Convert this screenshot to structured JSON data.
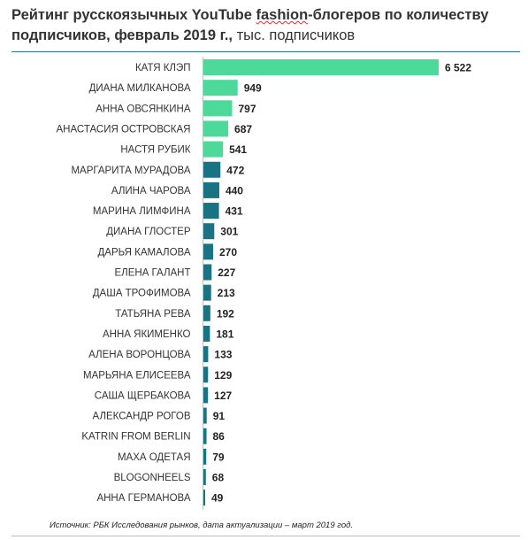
{
  "title": {
    "bold_part_1": "Рейтинг русскоязычных YouTube ",
    "underlined_word": "fashion",
    "bold_part_2": "-блогеров по количеству подписчиков, февраль 2019 г.,",
    "unit_part": " тыс. подписчиков"
  },
  "source": "Источник: РБК Исследования рынков, дата актуализации – март 2019 год.",
  "colors": {
    "top5": "#4dd99a",
    "rest": "#1a7383"
  },
  "chart_data": {
    "type": "bar",
    "orientation": "horizontal",
    "categories": [
      "КАТЯ КЛЭП",
      "ДИАНА МИЛКАНОВА",
      "АННА ОВСЯНКИНА",
      "АНАСТАСИЯ ОСТРОВСКАЯ",
      "НАСТЯ РУБИК",
      "МАРГАРИТА МУРАДОВА",
      "АЛИНА ЧАРОВА",
      "МАРИНА ЛИМФИНА",
      "ДИАНА ГЛОСТЕР",
      "ДАРЬЯ КАМАЛОВА",
      "ЕЛЕНА ГАЛАНТ",
      "ДАША ТРОФИМОВА",
      "ТАТЬЯНА РЕВА",
      "АННА ЯКИМЕНКО",
      "АЛЕНА ВОРОНЦОВА",
      "МАРЬЯНА ЕЛИСЕЕВА",
      "САША ЩЕРБАКОВА",
      "АЛЕКСАНДР РОГОВ",
      "KATRIN FROM BERLIN",
      "МАХА ОДЕТАЯ",
      "BLOGONHEELS",
      "АННА ГЕРМАНОВА"
    ],
    "values": [
      6522,
      949,
      797,
      687,
      541,
      472,
      440,
      431,
      301,
      270,
      227,
      213,
      192,
      181,
      133,
      129,
      127,
      91,
      86,
      79,
      68,
      49
    ],
    "value_labels": [
      "6 522",
      "949",
      "797",
      "687",
      "541",
      "472",
      "440",
      "431",
      "301",
      "270",
      "227",
      "213",
      "192",
      "181",
      "133",
      "129",
      "127",
      "91",
      "86",
      "79",
      "68",
      "49"
    ],
    "highlighted_count": 5,
    "xlim": [
      0,
      6522
    ],
    "grid": false,
    "legend": "none"
  }
}
